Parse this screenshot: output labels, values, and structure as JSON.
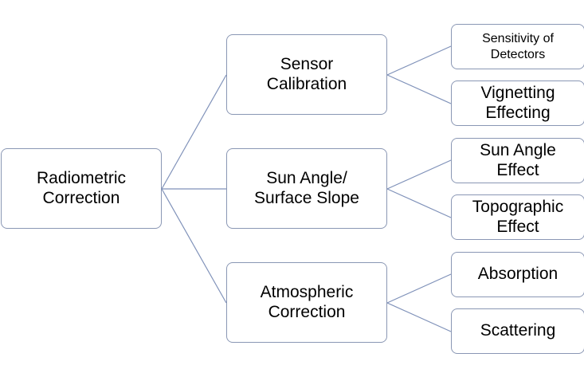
{
  "diagram": {
    "root": {
      "label": "Radiometric\nCorrection"
    },
    "branches": [
      {
        "label": "Sensor\nCalibration",
        "children": [
          "Sensitivity of\nDetectors",
          "Vignetting\nEffecting"
        ]
      },
      {
        "label": "Sun Angle/\nSurface Slope",
        "children": [
          "Sun Angle\nEffect",
          "Topographic\nEffect"
        ]
      },
      {
        "label": "Atmospheric\nCorrection",
        "children": [
          "Absorption",
          "Scattering"
        ]
      }
    ],
    "colors": {
      "connector": "#7f91b9",
      "node_border": "#8a97b4",
      "text": "#000000",
      "background": "#ffffff"
    }
  }
}
